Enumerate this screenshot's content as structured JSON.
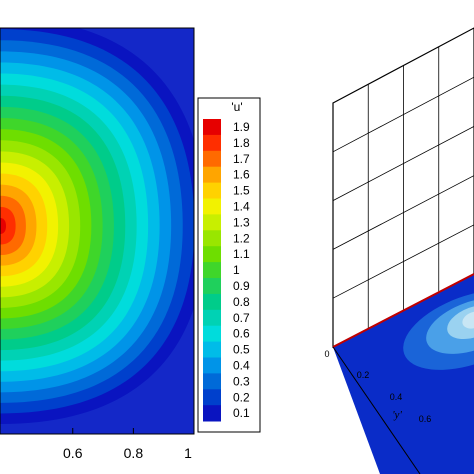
{
  "chart_data": [
    {
      "type": "heatmap",
      "description_kind": "filled contour plot",
      "variable": "'u'",
      "x_ticks": [
        "0.6",
        "0.8",
        "1"
      ],
      "x_visible_range": [
        0.36,
        1.0
      ],
      "peak": {
        "x": 0.36,
        "y": 0.42,
        "value": 1.9
      },
      "legend": {
        "title": "'u'",
        "placement": "right",
        "levels": [
          "1.9",
          "1.8",
          "1.7",
          "1.6",
          "1.5",
          "1.4",
          "1.3",
          "1.2",
          "1.1",
          "1",
          "0.9",
          "0.8",
          "0.7",
          "0.6",
          "0.5",
          "0.4",
          "0.3",
          "0.2",
          "0.1"
        ],
        "values": [
          1.9,
          1.8,
          1.7,
          1.6,
          1.5,
          1.4,
          1.3,
          1.2,
          1.1,
          1.0,
          0.9,
          0.8,
          0.7,
          0.6,
          0.5,
          0.4,
          0.3,
          0.2,
          0.1
        ],
        "colors": [
          "#e60000",
          "#ff2e00",
          "#ff6a00",
          "#ffa500",
          "#ffd200",
          "#f2f200",
          "#c8ef00",
          "#99e600",
          "#6ede00",
          "#3fd62a",
          "#1fd05c",
          "#00cc8a",
          "#00d2b4",
          "#00dcdc",
          "#00bce8",
          "#0094e8",
          "#006ad8",
          "#0040cc",
          "#0a14c0"
        ]
      }
    },
    {
      "type": "heatmap",
      "description_kind": "3D surface with floor contour",
      "y_axis_label": "'y'",
      "y_ticks": [
        "0",
        "0.2",
        "0.4",
        "0.6"
      ],
      "grid": true,
      "floor_colors": [
        "#0a2cc8",
        "#1a64d8",
        "#4aa0e8",
        "#9ad2f0",
        "#c8e6f4"
      ]
    }
  ]
}
